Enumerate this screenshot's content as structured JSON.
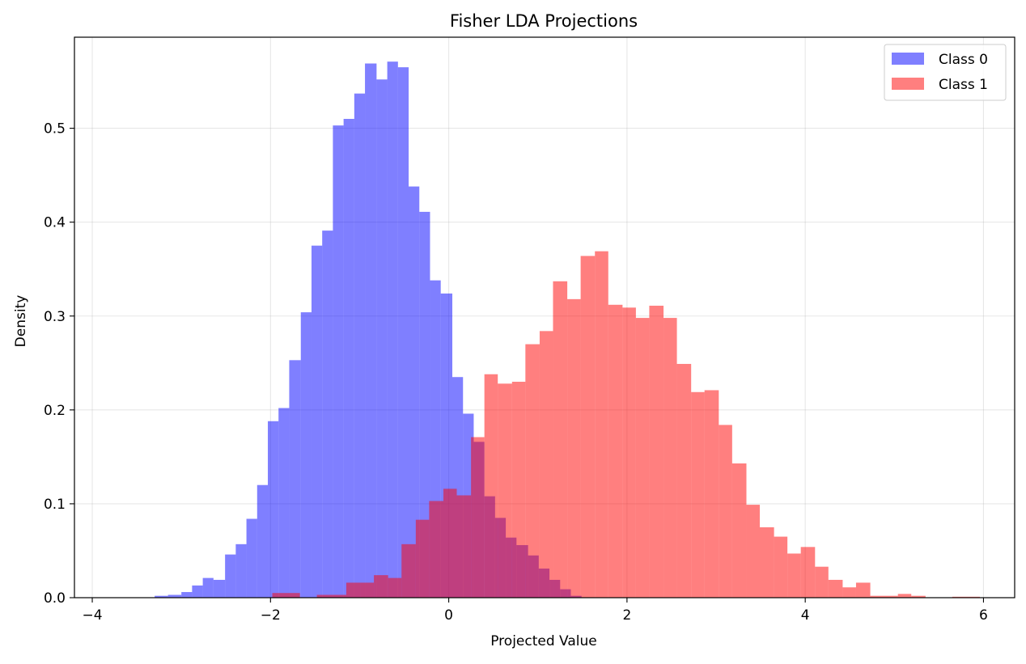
{
  "chart_data": {
    "type": "histogram",
    "title": "Fisher LDA Projections",
    "xlabel": "Projected Value",
    "ylabel": "Density",
    "xlim": [
      -4.2,
      6.35
    ],
    "ylim": [
      0,
      0.597
    ],
    "xticks": [
      -4,
      -2,
      0,
      2,
      4,
      6
    ],
    "yticks": [
      0.0,
      0.1,
      0.2,
      0.3,
      0.4,
      0.5
    ],
    "xtick_labels": [
      "−4",
      "−2",
      "0",
      "2",
      "4",
      "6"
    ],
    "ytick_labels": [
      "0.0",
      "0.1",
      "0.2",
      "0.3",
      "0.4",
      "0.5"
    ],
    "grid": true,
    "legend_position": "top-right",
    "series": [
      {
        "name": "Class 0",
        "color": "#0000ff",
        "opacity": 0.5,
        "bins": [
          {
            "x0": -3.3,
            "x1": -3.15,
            "y": 0.002
          },
          {
            "x0": -3.15,
            "x1": -3.0,
            "y": 0.003
          },
          {
            "x0": -3.0,
            "x1": -2.88,
            "y": 0.006
          },
          {
            "x0": -2.88,
            "x1": -2.76,
            "y": 0.013
          },
          {
            "x0": -2.76,
            "x1": -2.64,
            "y": 0.021
          },
          {
            "x0": -2.64,
            "x1": -2.51,
            "y": 0.019
          },
          {
            "x0": -2.51,
            "x1": -2.39,
            "y": 0.046
          },
          {
            "x0": -2.39,
            "x1": -2.27,
            "y": 0.057
          },
          {
            "x0": -2.27,
            "x1": -2.15,
            "y": 0.084
          },
          {
            "x0": -2.15,
            "x1": -2.03,
            "y": 0.12
          },
          {
            "x0": -2.03,
            "x1": -1.91,
            "y": 0.188
          },
          {
            "x0": -1.91,
            "x1": -1.79,
            "y": 0.202
          },
          {
            "x0": -1.79,
            "x1": -1.66,
            "y": 0.253
          },
          {
            "x0": -1.66,
            "x1": -1.54,
            "y": 0.304
          },
          {
            "x0": -1.54,
            "x1": -1.42,
            "y": 0.375
          },
          {
            "x0": -1.42,
            "x1": -1.3,
            "y": 0.391
          },
          {
            "x0": -1.3,
            "x1": -1.18,
            "y": 0.503
          },
          {
            "x0": -1.18,
            "x1": -1.06,
            "y": 0.51
          },
          {
            "x0": -1.06,
            "x1": -0.94,
            "y": 0.537
          },
          {
            "x0": -0.94,
            "x1": -0.81,
            "y": 0.569
          },
          {
            "x0": -0.81,
            "x1": -0.69,
            "y": 0.552
          },
          {
            "x0": -0.69,
            "x1": -0.57,
            "y": 0.571
          },
          {
            "x0": -0.57,
            "x1": -0.45,
            "y": 0.565
          },
          {
            "x0": -0.45,
            "x1": -0.33,
            "y": 0.438
          },
          {
            "x0": -0.33,
            "x1": -0.21,
            "y": 0.411
          },
          {
            "x0": -0.21,
            "x1": -0.09,
            "y": 0.338
          },
          {
            "x0": -0.09,
            "x1": 0.04,
            "y": 0.324
          },
          {
            "x0": 0.04,
            "x1": 0.16,
            "y": 0.235
          },
          {
            "x0": 0.16,
            "x1": 0.28,
            "y": 0.196
          },
          {
            "x0": 0.28,
            "x1": 0.4,
            "y": 0.166
          },
          {
            "x0": 0.4,
            "x1": 0.52,
            "y": 0.108
          },
          {
            "x0": 0.52,
            "x1": 0.64,
            "y": 0.085
          },
          {
            "x0": 0.64,
            "x1": 0.76,
            "y": 0.064
          },
          {
            "x0": 0.76,
            "x1": 0.89,
            "y": 0.056
          },
          {
            "x0": 0.89,
            "x1": 1.01,
            "y": 0.045
          },
          {
            "x0": 1.01,
            "x1": 1.13,
            "y": 0.031
          },
          {
            "x0": 1.13,
            "x1": 1.25,
            "y": 0.019
          },
          {
            "x0": 1.25,
            "x1": 1.37,
            "y": 0.009
          },
          {
            "x0": 1.37,
            "x1": 1.49,
            "y": 0.002
          }
        ]
      },
      {
        "name": "Class 1",
        "color": "#ff0000",
        "opacity": 0.5,
        "bins": [
          {
            "x0": -1.98,
            "x1": -1.67,
            "y": 0.005
          },
          {
            "x0": -1.48,
            "x1": -1.15,
            "y": 0.003
          },
          {
            "x0": -1.15,
            "x1": -0.99,
            "y": 0.016
          },
          {
            "x0": -0.99,
            "x1": -0.84,
            "y": 0.016
          },
          {
            "x0": -0.84,
            "x1": -0.68,
            "y": 0.024
          },
          {
            "x0": -0.68,
            "x1": -0.53,
            "y": 0.021
          },
          {
            "x0": -0.53,
            "x1": -0.37,
            "y": 0.057
          },
          {
            "x0": -0.37,
            "x1": -0.22,
            "y": 0.083
          },
          {
            "x0": -0.22,
            "x1": -0.06,
            "y": 0.103
          },
          {
            "x0": -0.06,
            "x1": 0.09,
            "y": 0.116
          },
          {
            "x0": 0.09,
            "x1": 0.25,
            "y": 0.109
          },
          {
            "x0": 0.25,
            "x1": 0.4,
            "y": 0.171
          },
          {
            "x0": 0.4,
            "x1": 0.55,
            "y": 0.238
          },
          {
            "x0": 0.55,
            "x1": 0.71,
            "y": 0.228
          },
          {
            "x0": 0.71,
            "x1": 0.86,
            "y": 0.23
          },
          {
            "x0": 0.86,
            "x1": 1.02,
            "y": 0.27
          },
          {
            "x0": 1.02,
            "x1": 1.17,
            "y": 0.284
          },
          {
            "x0": 1.17,
            "x1": 1.33,
            "y": 0.337
          },
          {
            "x0": 1.33,
            "x1": 1.48,
            "y": 0.318
          },
          {
            "x0": 1.48,
            "x1": 1.64,
            "y": 0.364
          },
          {
            "x0": 1.64,
            "x1": 1.79,
            "y": 0.369
          },
          {
            "x0": 1.79,
            "x1": 1.95,
            "y": 0.312
          },
          {
            "x0": 1.95,
            "x1": 2.1,
            "y": 0.309
          },
          {
            "x0": 2.1,
            "x1": 2.25,
            "y": 0.298
          },
          {
            "x0": 2.25,
            "x1": 2.41,
            "y": 0.311
          },
          {
            "x0": 2.41,
            "x1": 2.56,
            "y": 0.298
          },
          {
            "x0": 2.56,
            "x1": 2.72,
            "y": 0.249
          },
          {
            "x0": 2.72,
            "x1": 2.87,
            "y": 0.219
          },
          {
            "x0": 2.87,
            "x1": 3.03,
            "y": 0.221
          },
          {
            "x0": 3.03,
            "x1": 3.18,
            "y": 0.184
          },
          {
            "x0": 3.18,
            "x1": 3.34,
            "y": 0.143
          },
          {
            "x0": 3.34,
            "x1": 3.49,
            "y": 0.099
          },
          {
            "x0": 3.49,
            "x1": 3.65,
            "y": 0.075
          },
          {
            "x0": 3.65,
            "x1": 3.8,
            "y": 0.065
          },
          {
            "x0": 3.8,
            "x1": 3.95,
            "y": 0.047
          },
          {
            "x0": 3.95,
            "x1": 4.11,
            "y": 0.054
          },
          {
            "x0": 4.11,
            "x1": 4.26,
            "y": 0.033
          },
          {
            "x0": 4.26,
            "x1": 4.42,
            "y": 0.019
          },
          {
            "x0": 4.42,
            "x1": 4.57,
            "y": 0.011
          },
          {
            "x0": 4.57,
            "x1": 4.73,
            "y": 0.016
          },
          {
            "x0": 4.73,
            "x1": 5.04,
            "y": 0.002
          },
          {
            "x0": 5.04,
            "x1": 5.19,
            "y": 0.004
          },
          {
            "x0": 5.19,
            "x1": 5.35,
            "y": 0.002
          },
          {
            "x0": 5.65,
            "x1": 5.96,
            "y": 0.001
          }
        ]
      }
    ]
  }
}
